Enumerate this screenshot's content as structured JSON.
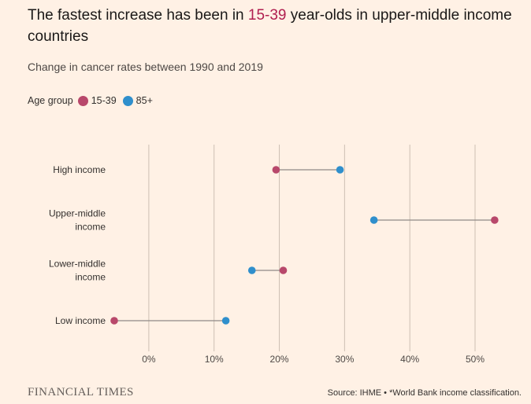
{
  "title": {
    "before": "The fastest increase has been in ",
    "highlight": "15-39",
    "after": " year-olds in upper-middle income countries"
  },
  "subtitle": "Change in cancer rates between 1990 and 2019",
  "legend": {
    "title": "Age group",
    "items": [
      {
        "label": "15-39",
        "color": "#b8486b"
      },
      {
        "label": "85+",
        "color": "#2f8fcc"
      }
    ]
  },
  "chart_data": {
    "type": "dumbbell",
    "categories": [
      {
        "label": [
          "High income"
        ],
        "values": {
          "15-39": 19.5,
          "85+": 29.3
        }
      },
      {
        "label": [
          "Upper-middle",
          "income"
        ],
        "values": {
          "15-39": 53.0,
          "85+": 34.5
        }
      },
      {
        "label": [
          "Lower-middle",
          "income"
        ],
        "values": {
          "15-39": 20.6,
          "85+": 15.8
        }
      },
      {
        "label": [
          "Low income"
        ],
        "values": {
          "15-39": -5.3,
          "85+": 11.8
        }
      }
    ],
    "series": [
      {
        "name": "15-39",
        "color": "#b8486b"
      },
      {
        "name": "85+",
        "color": "#2f8fcc"
      }
    ],
    "xlim": [
      -5.3,
      53.5
    ],
    "xticks": [
      0,
      10,
      20,
      30,
      40,
      50
    ],
    "xtick_labels": [
      "0%",
      "10%",
      "20%",
      "30%",
      "40%",
      "50%"
    ],
    "grid": true
  },
  "footer": {
    "brand": "FINANCIAL TIMES",
    "source": "Source: IHME • *World Bank income classification."
  }
}
